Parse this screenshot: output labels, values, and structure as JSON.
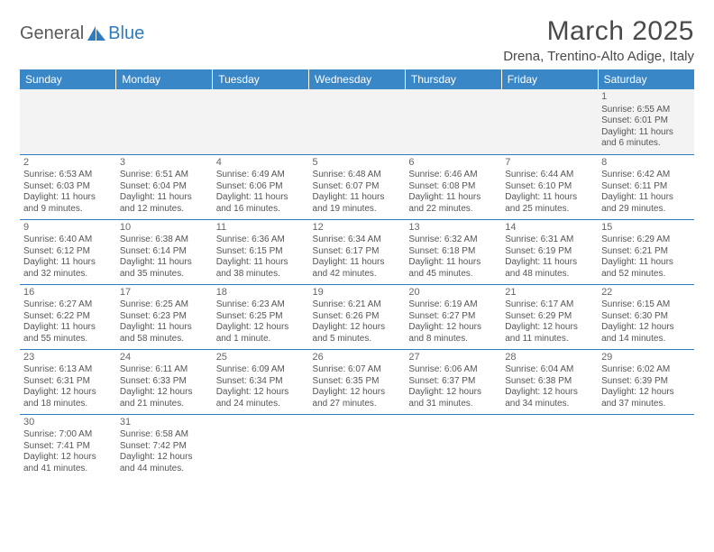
{
  "logo": {
    "text1": "General",
    "text2": "Blue",
    "icon_color": "#2d7cc0"
  },
  "title": "March 2025",
  "location": "Drena, Trentino-Alto Adige, Italy",
  "colors": {
    "header_bg": "#3a87c8",
    "header_text": "#ffffff",
    "border": "#2d7cc0",
    "shade_row_bg": "#f3f3f3",
    "body_text": "#555555"
  },
  "layout": {
    "columns": 7,
    "rows": 6,
    "first_day_column_index": 6
  },
  "weekdays": [
    "Sunday",
    "Monday",
    "Tuesday",
    "Wednesday",
    "Thursday",
    "Friday",
    "Saturday"
  ],
  "days": [
    {
      "n": 1,
      "sunrise": "6:55 AM",
      "sunset": "6:01 PM",
      "daylight": "11 hours and 6 minutes."
    },
    {
      "n": 2,
      "sunrise": "6:53 AM",
      "sunset": "6:03 PM",
      "daylight": "11 hours and 9 minutes."
    },
    {
      "n": 3,
      "sunrise": "6:51 AM",
      "sunset": "6:04 PM",
      "daylight": "11 hours and 12 minutes."
    },
    {
      "n": 4,
      "sunrise": "6:49 AM",
      "sunset": "6:06 PM",
      "daylight": "11 hours and 16 minutes."
    },
    {
      "n": 5,
      "sunrise": "6:48 AM",
      "sunset": "6:07 PM",
      "daylight": "11 hours and 19 minutes."
    },
    {
      "n": 6,
      "sunrise": "6:46 AM",
      "sunset": "6:08 PM",
      "daylight": "11 hours and 22 minutes."
    },
    {
      "n": 7,
      "sunrise": "6:44 AM",
      "sunset": "6:10 PM",
      "daylight": "11 hours and 25 minutes."
    },
    {
      "n": 8,
      "sunrise": "6:42 AM",
      "sunset": "6:11 PM",
      "daylight": "11 hours and 29 minutes."
    },
    {
      "n": 9,
      "sunrise": "6:40 AM",
      "sunset": "6:12 PM",
      "daylight": "11 hours and 32 minutes."
    },
    {
      "n": 10,
      "sunrise": "6:38 AM",
      "sunset": "6:14 PM",
      "daylight": "11 hours and 35 minutes."
    },
    {
      "n": 11,
      "sunrise": "6:36 AM",
      "sunset": "6:15 PM",
      "daylight": "11 hours and 38 minutes."
    },
    {
      "n": 12,
      "sunrise": "6:34 AM",
      "sunset": "6:17 PM",
      "daylight": "11 hours and 42 minutes."
    },
    {
      "n": 13,
      "sunrise": "6:32 AM",
      "sunset": "6:18 PM",
      "daylight": "11 hours and 45 minutes."
    },
    {
      "n": 14,
      "sunrise": "6:31 AM",
      "sunset": "6:19 PM",
      "daylight": "11 hours and 48 minutes."
    },
    {
      "n": 15,
      "sunrise": "6:29 AM",
      "sunset": "6:21 PM",
      "daylight": "11 hours and 52 minutes."
    },
    {
      "n": 16,
      "sunrise": "6:27 AM",
      "sunset": "6:22 PM",
      "daylight": "11 hours and 55 minutes."
    },
    {
      "n": 17,
      "sunrise": "6:25 AM",
      "sunset": "6:23 PM",
      "daylight": "11 hours and 58 minutes."
    },
    {
      "n": 18,
      "sunrise": "6:23 AM",
      "sunset": "6:25 PM",
      "daylight": "12 hours and 1 minute."
    },
    {
      "n": 19,
      "sunrise": "6:21 AM",
      "sunset": "6:26 PM",
      "daylight": "12 hours and 5 minutes."
    },
    {
      "n": 20,
      "sunrise": "6:19 AM",
      "sunset": "6:27 PM",
      "daylight": "12 hours and 8 minutes."
    },
    {
      "n": 21,
      "sunrise": "6:17 AM",
      "sunset": "6:29 PM",
      "daylight": "12 hours and 11 minutes."
    },
    {
      "n": 22,
      "sunrise": "6:15 AM",
      "sunset": "6:30 PM",
      "daylight": "12 hours and 14 minutes."
    },
    {
      "n": 23,
      "sunrise": "6:13 AM",
      "sunset": "6:31 PM",
      "daylight": "12 hours and 18 minutes."
    },
    {
      "n": 24,
      "sunrise": "6:11 AM",
      "sunset": "6:33 PM",
      "daylight": "12 hours and 21 minutes."
    },
    {
      "n": 25,
      "sunrise": "6:09 AM",
      "sunset": "6:34 PM",
      "daylight": "12 hours and 24 minutes."
    },
    {
      "n": 26,
      "sunrise": "6:07 AM",
      "sunset": "6:35 PM",
      "daylight": "12 hours and 27 minutes."
    },
    {
      "n": 27,
      "sunrise": "6:06 AM",
      "sunset": "6:37 PM",
      "daylight": "12 hours and 31 minutes."
    },
    {
      "n": 28,
      "sunrise": "6:04 AM",
      "sunset": "6:38 PM",
      "daylight": "12 hours and 34 minutes."
    },
    {
      "n": 29,
      "sunrise": "6:02 AM",
      "sunset": "6:39 PM",
      "daylight": "12 hours and 37 minutes."
    },
    {
      "n": 30,
      "sunrise": "7:00 AM",
      "sunset": "7:41 PM",
      "daylight": "12 hours and 41 minutes."
    },
    {
      "n": 31,
      "sunrise": "6:58 AM",
      "sunset": "7:42 PM",
      "daylight": "12 hours and 44 minutes."
    }
  ],
  "labels": {
    "sunrise": "Sunrise:",
    "sunset": "Sunset:",
    "daylight": "Daylight:"
  }
}
